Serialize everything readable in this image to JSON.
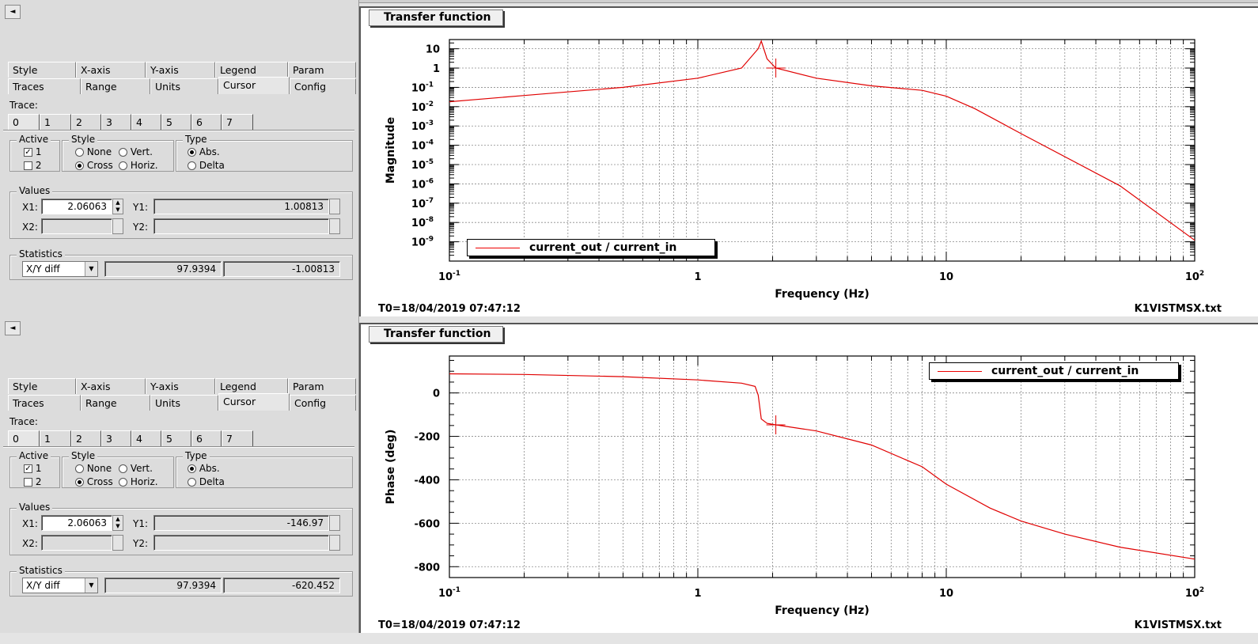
{
  "top_tabs": [
    {
      "label": ""
    },
    {
      "label": ""
    }
  ],
  "panels": [
    {
      "collapse_label": "◄",
      "tabs_row1": [
        "Style",
        "X-axis",
        "Y-axis",
        "Legend",
        "Param"
      ],
      "tabs_row2": [
        "Traces",
        "Range",
        "Units",
        "Cursor",
        "Config"
      ],
      "selected_tab": "Cursor",
      "trace_label": "Trace:",
      "trace_tabs": [
        "0",
        "1",
        "2",
        "3",
        "4",
        "5",
        "6",
        "7"
      ],
      "active_title": "Active",
      "active_options": [
        {
          "label": "1",
          "checked": true
        },
        {
          "label": "2",
          "checked": false
        }
      ],
      "style_title": "Style",
      "style_options": [
        "None",
        "Vert.",
        "Cross",
        "Horiz."
      ],
      "style_selected": "Cross",
      "type_title": "Type",
      "type_options": [
        "Abs.",
        "Delta"
      ],
      "type_selected": "Abs.",
      "values_title": "Values",
      "x1_label": "X1:",
      "x1_value": "2.06063",
      "y1_label": "Y1:",
      "y1_value": "1.00813",
      "x2_label": "X2:",
      "x2_value": "",
      "y2_label": "Y2:",
      "y2_value": "",
      "stats_title": "Statistics",
      "stats_mode": "X/Y diff",
      "stats_val1": "97.9394",
      "stats_val2": "-1.00813",
      "plot_title": "Transfer function",
      "ylabel": "Magnitude",
      "xlabel": "Frequency (Hz)",
      "legend": "current_out / current_in",
      "t0": "T0=18/04/2019 07:47:12",
      "filename": "K1VISTMSX.txt"
    },
    {
      "collapse_label": "◄",
      "tabs_row1": [
        "Style",
        "X-axis",
        "Y-axis",
        "Legend",
        "Param"
      ],
      "tabs_row2": [
        "Traces",
        "Range",
        "Units",
        "Cursor",
        "Config"
      ],
      "selected_tab": "Cursor",
      "trace_label": "Trace:",
      "trace_tabs": [
        "0",
        "1",
        "2",
        "3",
        "4",
        "5",
        "6",
        "7"
      ],
      "active_title": "Active",
      "active_options": [
        {
          "label": "1",
          "checked": true
        },
        {
          "label": "2",
          "checked": false
        }
      ],
      "style_title": "Style",
      "style_options": [
        "None",
        "Vert.",
        "Cross",
        "Horiz."
      ],
      "style_selected": "Cross",
      "type_title": "Type",
      "type_options": [
        "Abs.",
        "Delta"
      ],
      "type_selected": "Abs.",
      "values_title": "Values",
      "x1_label": "X1:",
      "x1_value": "2.06063",
      "y1_label": "Y1:",
      "y1_value": "-146.97",
      "x2_label": "X2:",
      "x2_value": "",
      "y2_label": "Y2:",
      "y2_value": "",
      "stats_title": "Statistics",
      "stats_mode": "X/Y diff",
      "stats_val1": "97.9394",
      "stats_val2": "-620.452",
      "plot_title": "Transfer function",
      "ylabel": "Phase (deg)",
      "xlabel": "Frequency (Hz)",
      "legend": "current_out / current_in",
      "t0": "T0=18/04/2019 07:47:12",
      "filename": "K1VISTMSX.txt"
    }
  ],
  "chart_data": [
    {
      "type": "line",
      "title": "Transfer function",
      "xlabel": "Frequency (Hz)",
      "ylabel": "Magnitude",
      "xscale": "log",
      "yscale": "log",
      "xlim": [
        0.1,
        100
      ],
      "ylim": [
        1e-10,
        30
      ],
      "x_ticks": [
        "10^-1",
        "1",
        "10",
        "10^2"
      ],
      "y_ticks": [
        "10",
        "1",
        "10^-1",
        "10^-2",
        "10^-3",
        "10^-4",
        "10^-5",
        "10^-6",
        "10^-7",
        "10^-8",
        "10^-9"
      ],
      "grid": true,
      "legend_position": "bottom-left",
      "color": "#e00000",
      "series": [
        {
          "name": "current_out / current_in",
          "x": [
            0.1,
            0.2,
            0.5,
            1.0,
            1.5,
            1.75,
            1.8,
            1.9,
            2.06,
            3.0,
            5.0,
            8.0,
            10.0,
            13.0,
            20.0,
            50.0,
            100.0
          ],
          "y": [
            0.018,
            0.038,
            0.1,
            0.3,
            1.0,
            10.0,
            25.0,
            3.0,
            1.0,
            0.3,
            0.12,
            0.07,
            0.035,
            0.008,
            0.0004,
            8e-07,
            1.2e-09
          ]
        }
      ],
      "cursor": {
        "x": 2.06063,
        "y": 1.00813
      }
    },
    {
      "type": "line",
      "title": "Transfer function",
      "xlabel": "Frequency (Hz)",
      "ylabel": "Phase (deg)",
      "xscale": "log",
      "yscale": "linear",
      "xlim": [
        0.1,
        100
      ],
      "ylim": [
        -850,
        170
      ],
      "x_ticks": [
        "10^-1",
        "1",
        "10",
        "10^2"
      ],
      "y_ticks": [
        0,
        -200,
        -400,
        -600,
        -800
      ],
      "grid": true,
      "legend_position": "top-right",
      "color": "#e00000",
      "series": [
        {
          "name": "current_out / current_in",
          "x": [
            0.1,
            0.2,
            0.5,
            1.0,
            1.5,
            1.7,
            1.75,
            1.8,
            1.9,
            2.06,
            3.0,
            5.0,
            8.0,
            10.0,
            15.0,
            20.0,
            30.0,
            50.0,
            100.0
          ],
          "y": [
            88,
            85,
            75,
            60,
            45,
            30,
            -10,
            -120,
            -140,
            -147,
            -175,
            -240,
            -340,
            -420,
            -530,
            -590,
            -650,
            -710,
            -765
          ]
        }
      ],
      "cursor": {
        "x": 2.06063,
        "y": -146.97
      }
    }
  ]
}
